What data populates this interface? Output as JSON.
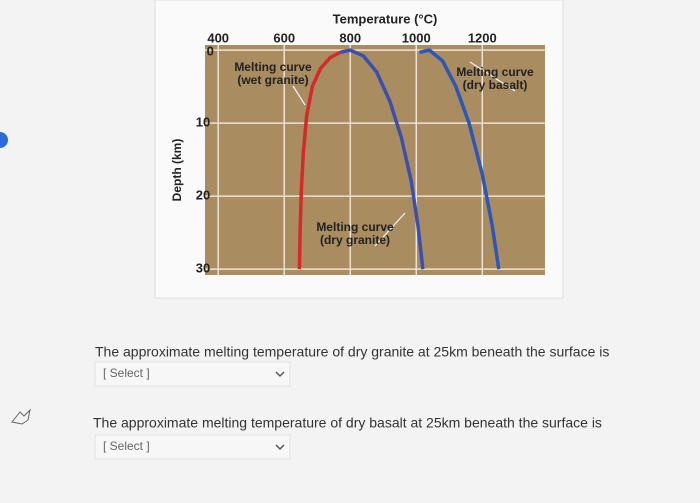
{
  "chart_data": {
    "type": "line",
    "x_label": "Temperature (°C)",
    "y_label": "Depth (km)",
    "xlim": [
      360,
      1390
    ],
    "ylim": [
      -0.7,
      30.8
    ],
    "y_inverted": true,
    "xticks": [
      400,
      600,
      800,
      1000,
      1200
    ],
    "yticks": [
      0,
      10,
      20,
      30
    ],
    "grid": true,
    "series": [
      {
        "label": [
          "Melting curve",
          "(wet granite)"
        ],
        "color": "#d42a2a",
        "x": [
          770,
          740,
          710,
          685,
          668,
          658,
          652,
          648,
          646
        ],
        "values": [
          0.3,
          1,
          2.5,
          5,
          9,
          14,
          19,
          25,
          30
        ]
      },
      {
        "label": [
          "Melting curve",
          "(dry granite)"
        ],
        "color": "#3a4fb0",
        "x": [
          770,
          800,
          840,
          880,
          920,
          955,
          985,
          1005,
          1020
        ],
        "values": [
          0.3,
          0,
          0.8,
          3,
          7,
          12,
          18,
          24,
          30
        ]
      },
      {
        "label": [
          "Melting curve",
          "(dry basalt)"
        ],
        "color": "#2a57b8",
        "x": [
          1010,
          1040,
          1080,
          1120,
          1160,
          1200,
          1230,
          1250
        ],
        "values": [
          0.3,
          0,
          1.5,
          5,
          10,
          17,
          24,
          30
        ]
      }
    ]
  },
  "questions": [
    {
      "text": "The approximate melting temperature of dry granite at 25km beneath the surface is",
      "select": "[ Select ]"
    },
    {
      "text": "The approximate melting temperature of dry basalt at 25km beneath the surface is",
      "select": "[ Select ]"
    }
  ]
}
